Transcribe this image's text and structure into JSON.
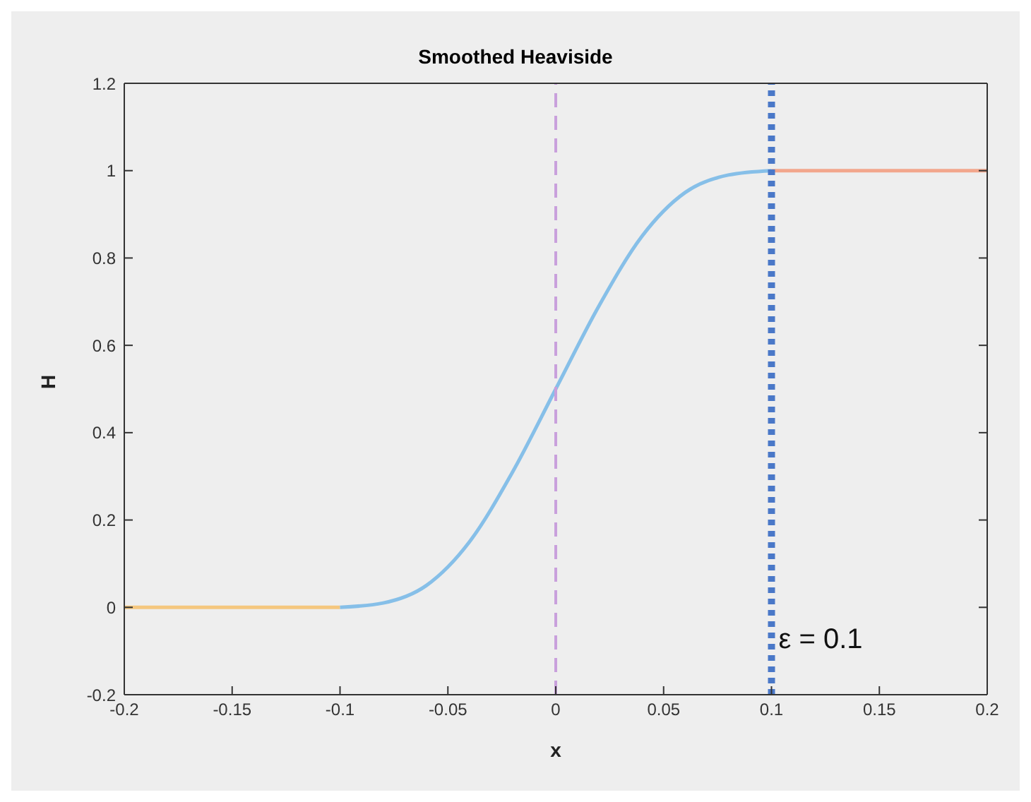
{
  "chart_data": {
    "type": "line",
    "title": "Smoothed Heaviside",
    "xlabel": "x",
    "ylabel": "H",
    "series": [
      {
        "color": "#f5c77e",
        "x": [
          -0.2,
          -0.1
        ],
        "values": [
          0,
          0
        ]
      },
      {
        "color": "#86bfe8",
        "x": [
          -0.1,
          -0.08,
          -0.06,
          -0.04,
          -0.02,
          0,
          0.02,
          0.04,
          0.06,
          0.08,
          0.1
        ],
        "values": [
          0,
          0.01,
          0.05,
          0.15,
          0.31,
          0.5,
          0.69,
          0.85,
          0.95,
          0.99,
          1
        ]
      },
      {
        "color": "#f2a68c",
        "x": [
          0.1,
          0.2
        ],
        "values": [
          1,
          1
        ]
      }
    ],
    "ref_lines": [
      {
        "axis": "x",
        "value": 0,
        "color": "#c9a0dc",
        "line_style": "dashed"
      },
      {
        "axis": "x",
        "value": 0.1,
        "color": "#4a78c8",
        "line_style": "dotted"
      }
    ],
    "annotations": [
      {
        "text": "ε = 0.1",
        "x": 0.1,
        "y": -0.07
      }
    ],
    "xlim": [
      -0.2,
      0.2
    ],
    "xticks": [
      -0.2,
      -0.15,
      -0.1,
      -0.05,
      0,
      0.05,
      0.1,
      0.15,
      0.2
    ],
    "ylim": [
      -0.2,
      1.2
    ],
    "yticks": [
      -0.2,
      0,
      0.2,
      0.4,
      0.6,
      0.8,
      1,
      1.2
    ],
    "grid": false,
    "legend": false,
    "marker": "none",
    "line_style": "solid"
  }
}
